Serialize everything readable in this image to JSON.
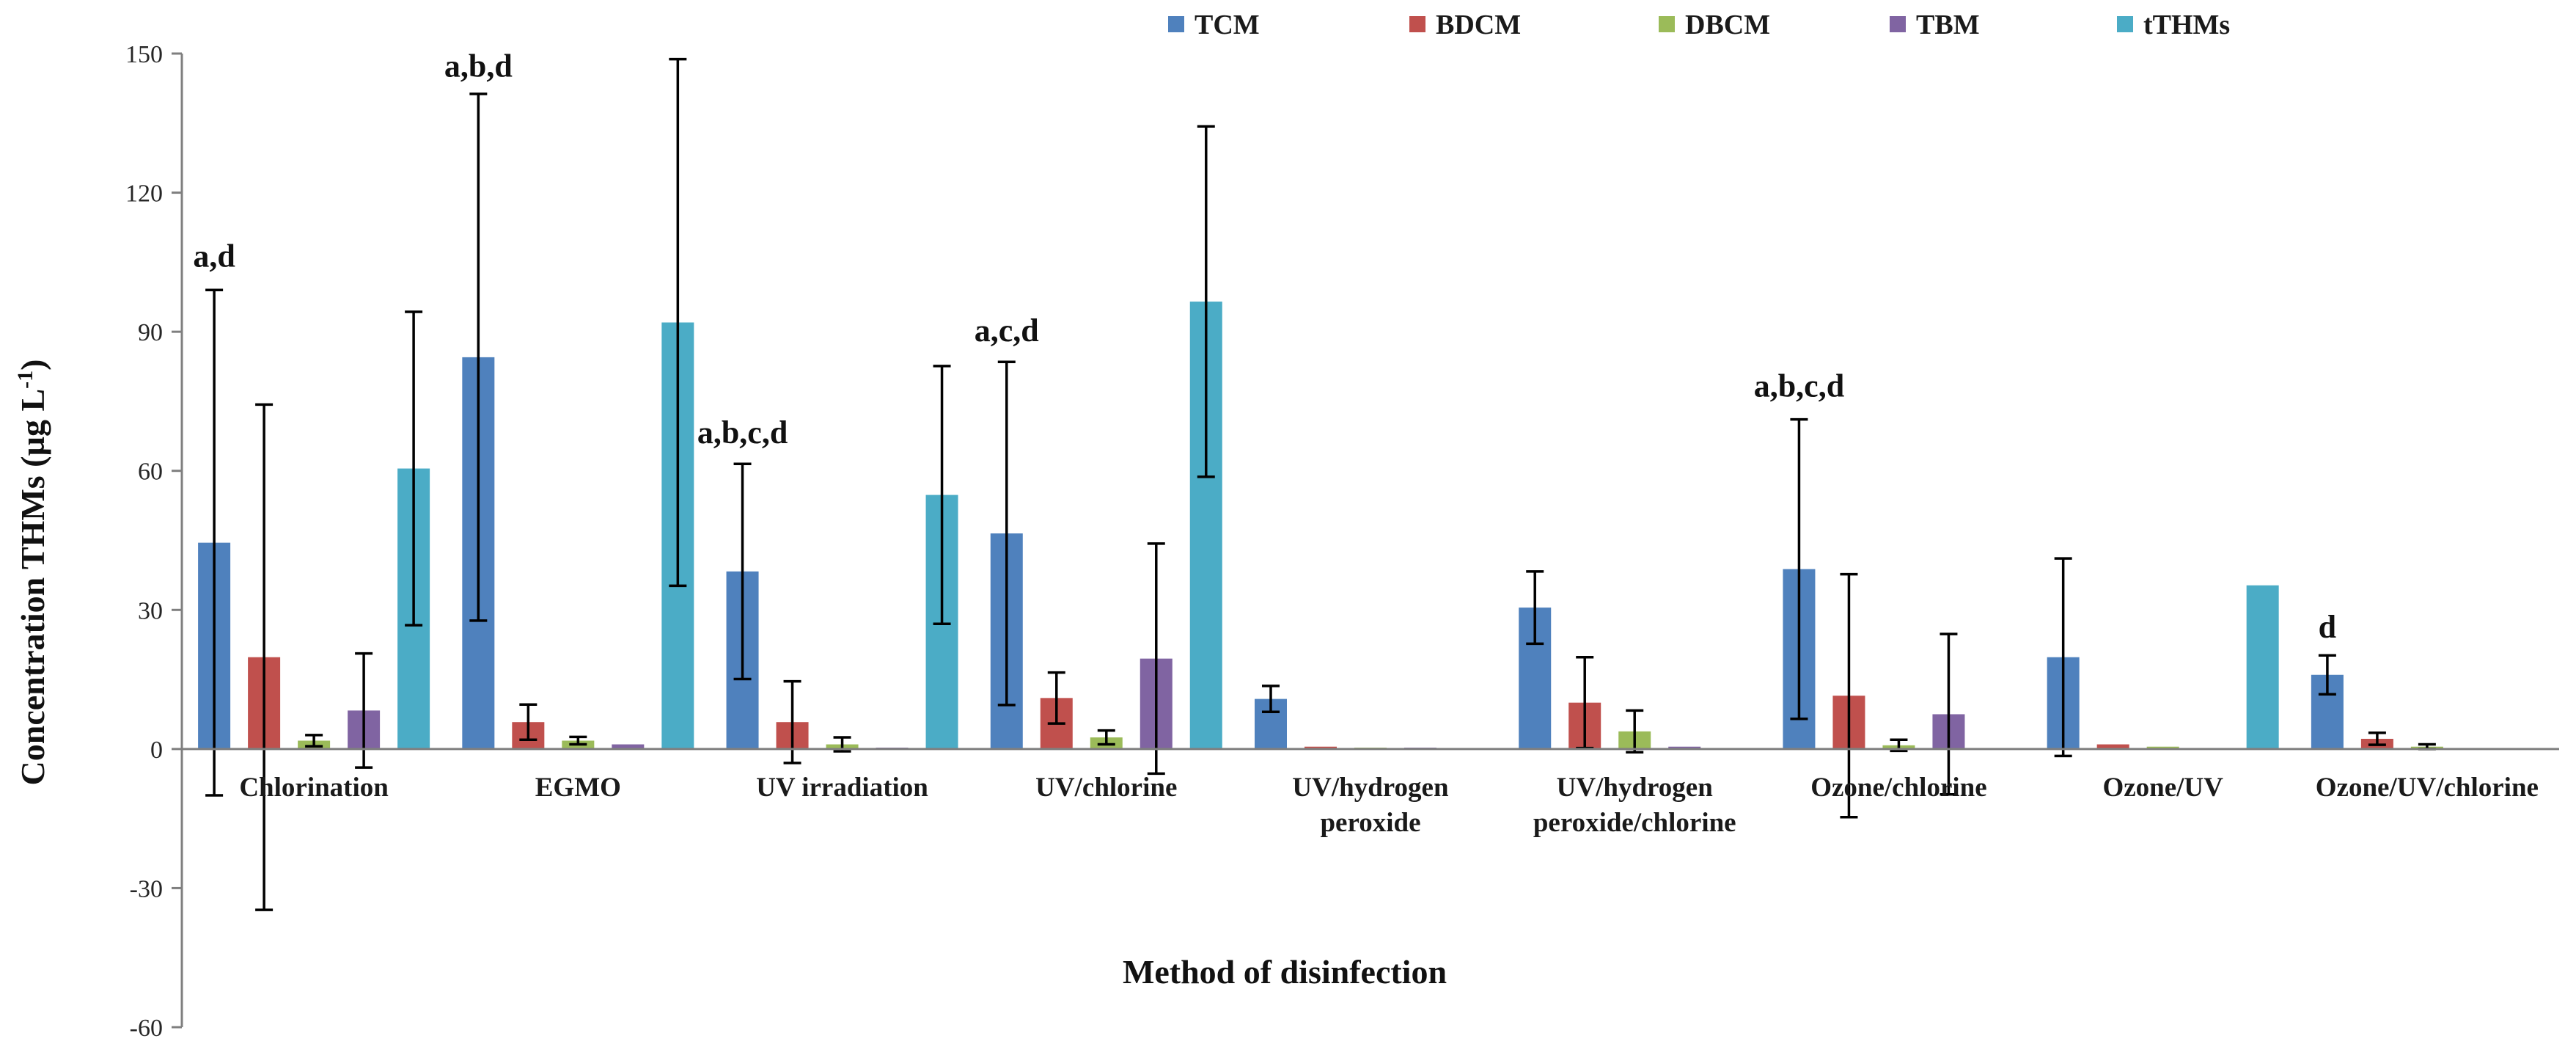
{
  "chart_data": {
    "type": "bar",
    "title": "",
    "xlabel": "Method of disinfection",
    "ylabel": "Concentration THMs (µg L-1)",
    "ylabel_main": "Concentration THMs (µg L",
    "ylabel_sup": "-1",
    "ylabel_end": ")",
    "ylim": [
      -60,
      150
    ],
    "yticks": [
      -60,
      -30,
      0,
      30,
      60,
      90,
      120,
      150
    ],
    "ytick_labels": [
      "-60",
      "-30",
      "0",
      "30",
      "60",
      "90",
      "120",
      "150"
    ],
    "legend_position": "top",
    "categories": [
      [
        "Chlorination"
      ],
      [
        "EGMO"
      ],
      [
        "UV irradiation"
      ],
      [
        "UV/chlorine"
      ],
      [
        "UV/hydrogen",
        "peroxide"
      ],
      [
        "UV/hydrogen",
        "peroxide/chlorine"
      ],
      [
        "Ozone/chlorine"
      ],
      [
        "Ozone/UV"
      ],
      [
        "Ozone/UV/chlorine"
      ]
    ],
    "series": [
      {
        "name": "TCM",
        "color": "#4F81BD",
        "values": [
          44.5,
          84.5,
          38.3,
          46.5,
          10.8,
          30.5,
          38.8,
          19.8,
          16.0
        ],
        "errors": [
          54.5,
          56.8,
          23.2,
          37.0,
          2.8,
          7.8,
          32.3,
          21.3,
          4.2
        ]
      },
      {
        "name": "BDCM",
        "color": "#C0504D",
        "values": [
          19.8,
          5.8,
          5.8,
          11.0,
          0.5,
          10.0,
          11.5,
          1.0,
          2.2
        ],
        "errors": [
          54.5,
          3.8,
          8.8,
          5.5,
          0,
          9.8,
          26.2,
          0,
          1.3
        ]
      },
      {
        "name": "DBCM",
        "color": "#9BBB59",
        "values": [
          1.8,
          1.8,
          1.0,
          2.5,
          0.3,
          3.8,
          0.8,
          0.5,
          0.5
        ],
        "errors": [
          1.2,
          0.8,
          1.5,
          1.5,
          0,
          4.5,
          1.2,
          0,
          0.5
        ]
      },
      {
        "name": "TBM",
        "color": "#8064A2",
        "values": [
          8.3,
          1.0,
          0.3,
          19.5,
          0.3,
          0.5,
          7.5,
          0,
          0
        ],
        "errors": [
          12.3,
          0,
          0,
          24.8,
          0,
          0,
          17.3,
          0,
          0
        ]
      },
      {
        "name": "tTHMs",
        "color": "#4BACC6",
        "values": [
          60.5,
          92.0,
          54.8,
          96.5,
          0,
          0,
          0,
          35.3,
          0
        ],
        "errors": [
          33.8,
          56.8,
          27.8,
          37.8,
          0,
          0,
          0,
          0,
          0
        ]
      }
    ],
    "annotations": [
      {
        "category_index": 0,
        "text": "a,d",
        "value": 104
      },
      {
        "category_index": 1,
        "text": "a,b,d",
        "value": 145
      },
      {
        "category_index": 2,
        "text": "a,b,c,d",
        "value": 66
      },
      {
        "category_index": 3,
        "text": "a,c,d",
        "value": 88
      },
      {
        "category_index": 6,
        "text": "a,b,c,d",
        "value": 76
      },
      {
        "category_index": 8,
        "text": "d",
        "value": 24
      }
    ]
  }
}
